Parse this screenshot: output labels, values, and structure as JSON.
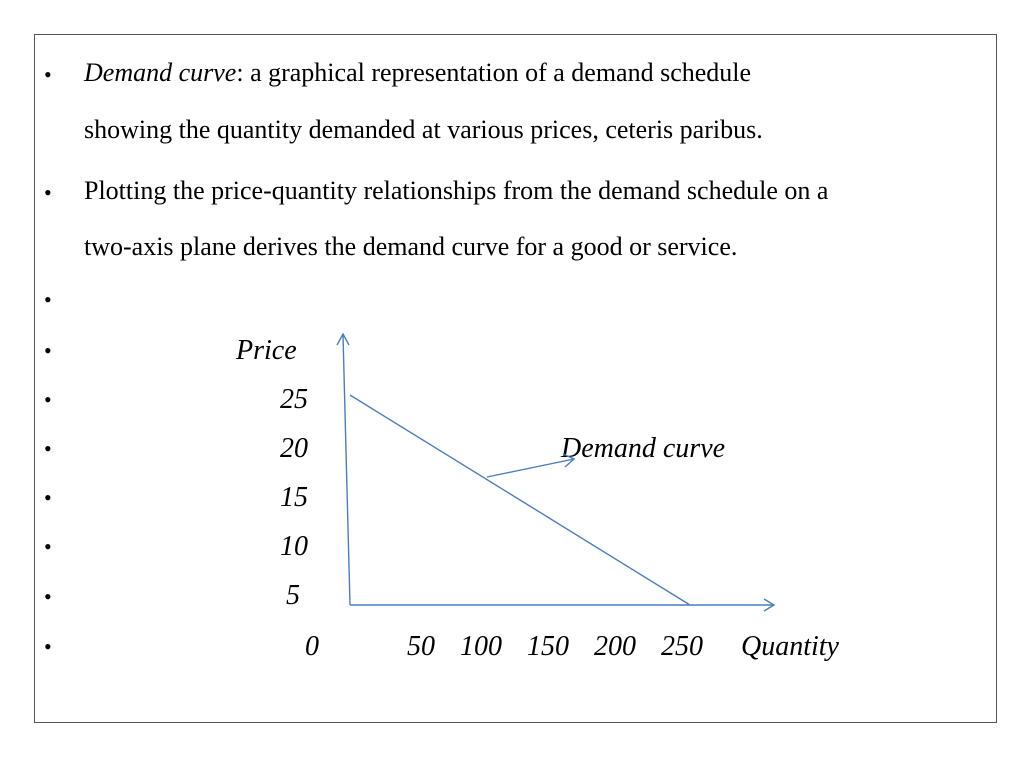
{
  "bullets": [
    {
      "term": "Demand curve",
      "definition": ": a graphical representation of a demand schedule",
      "continuation": "showing the quantity demanded at various prices, ceteris paribus."
    },
    {
      "line1": "Plotting the price-quantity relationships from the demand schedule on a",
      "line2": "two-axis plane derives the demand curve for a good or service."
    }
  ],
  "bullet_symbol": "•",
  "chart_data": {
    "type": "line",
    "title": "",
    "xlabel": "Quantity",
    "ylabel": "Price",
    "x_ticks": [
      "0",
      "50",
      "100",
      "150",
      "200",
      "250"
    ],
    "y_ticks": [
      "25",
      "20",
      "15",
      "10",
      "5"
    ],
    "series": [
      {
        "name": "Demand curve",
        "x": [
          0,
          250
        ],
        "y": [
          25,
          0
        ]
      }
    ],
    "annotation": "Demand curve",
    "line_color": "#4a7ebb",
    "grid": false
  }
}
